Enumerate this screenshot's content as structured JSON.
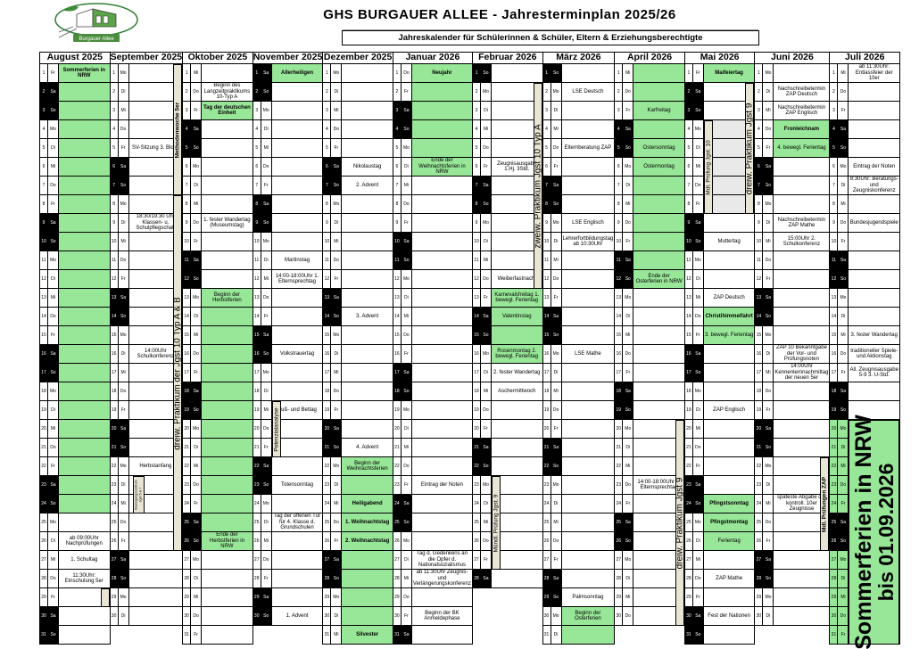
{
  "page": {
    "title": "GHS BURGAUER ALLEE  -  Jahresterminplan  2025/26",
    "subtitle": "Jahreskalender für Schülerinnen & Schüler, Eltern & Erziehungsberechtigte",
    "logo_caption": "Burgauer Allee"
  },
  "colors": {
    "holiday_green": "#98e698",
    "weekend_black": "#000000",
    "bar_tan": "#e9e5d5",
    "shade_grey": "#e9e9e9"
  },
  "weekday_labels": [
    "Mo",
    "Di",
    "Mi",
    "Do",
    "Fr",
    "Sa",
    "So"
  ],
  "months": [
    {
      "name": "August 2025",
      "days": 31,
      "first_weekday": 4,
      "green_days": [
        [
          1,
          24
        ]
      ],
      "events": [
        {
          "day": 1,
          "text": "Sommerferien in NRW",
          "bold": true
        },
        {
          "day": 26,
          "text": "ab 09:00Uhr Nachprüfungen"
        },
        {
          "day": 27,
          "text": "1. Schultag"
        },
        {
          "day": 28,
          "text": "11:30Uhr: Einschulung 5er"
        }
      ],
      "bars": [
        {
          "label": "",
          "rows": [
            29,
            29
          ],
          "side": "right",
          "style": "small"
        }
      ]
    },
    {
      "name": "September 2025",
      "days": 30,
      "first_weekday": 0,
      "green_days": [],
      "events": [
        {
          "day": 5,
          "text": "SV-Sitzung 3. Block"
        },
        {
          "day": 9,
          "text": "18:30/19:30 Uhr Klassen- u. Schulpflegschaft"
        },
        {
          "day": 16,
          "text": "14:00Uhr Schulkonferenz"
        },
        {
          "day": 22,
          "text": "Herbstanfang"
        }
      ],
      "bars": [
        {
          "label": "Methodenwoche 5er",
          "rows": [
            1,
            7
          ],
          "side": "right",
          "style": "small",
          "bold": true
        },
        {
          "label": "dreiw. Praktikum der Jgst 10 Typ A & B",
          "rows": [
            8,
            26
          ],
          "side": "right",
          "style": "tall"
        },
        {
          "label": "Bewegungszentrum\nJgst 5 & 7",
          "rows": [
            23,
            24
          ],
          "side": "mid",
          "style": "tiny"
        }
      ]
    },
    {
      "name": "Oktober 2025",
      "days": 31,
      "first_weekday": 2,
      "green_days": [
        [
          3,
          3
        ],
        [
          13,
          26
        ]
      ],
      "events": [
        {
          "day": 2,
          "text": "Beginn des Langzeitpraktikums 10-Typ A"
        },
        {
          "day": 3,
          "text": "Tag der deutschen Einheit",
          "bold": true
        },
        {
          "day": 9,
          "text": "1. fester Wandertag (Museumstag)"
        },
        {
          "day": 13,
          "text": "Beginn der Herbstferien"
        },
        {
          "day": 26,
          "text": "Ende der Herbstferien in NRW"
        }
      ],
      "bars": []
    },
    {
      "name": "November 2025",
      "days": 30,
      "first_weekday": 5,
      "green_days": [
        [
          1,
          1
        ]
      ],
      "events": [
        {
          "day": 1,
          "text": "Allerheiligen",
          "bold": true
        },
        {
          "day": 11,
          "text": "Martinstag"
        },
        {
          "day": 12,
          "text": "14:00-18:00Uhr 1. Elternsprechtag"
        },
        {
          "day": 16,
          "text": "Volkstrauertag"
        },
        {
          "day": 19,
          "text": "Buß- und Bettag"
        },
        {
          "day": 23,
          "text": "Totensonntag"
        },
        {
          "day": 25,
          "text": "Tag der offenen Tür für 4. Klasse d. Grundschulen"
        },
        {
          "day": 30,
          "text": "1. Advent"
        }
      ],
      "bars": [
        {
          "label": "Potenzialanalyse",
          "rows": [
            19,
            21
          ],
          "side": "left",
          "style": "small"
        }
      ]
    },
    {
      "name": "Dezember 2025",
      "days": 31,
      "first_weekday": 0,
      "green_days": [
        [
          22,
          31
        ]
      ],
      "events": [
        {
          "day": 6,
          "text": "Nikolaustag"
        },
        {
          "day": 7,
          "text": "2. Advent"
        },
        {
          "day": 14,
          "text": "3. Advent"
        },
        {
          "day": 21,
          "text": "4. Advent"
        },
        {
          "day": 22,
          "text": "Beginn der Weihnachtsferien"
        },
        {
          "day": 24,
          "text": "Heiligabend",
          "bold": true
        },
        {
          "day": 25,
          "text": "1. Weihnachtstag",
          "bold": true
        },
        {
          "day": 26,
          "text": "2. Weihnachtstag",
          "bold": true
        },
        {
          "day": 31,
          "text": "Silvester",
          "bold": true
        }
      ],
      "bars": []
    },
    {
      "name": "Januar 2026",
      "days": 31,
      "first_weekday": 3,
      "green_days": [
        [
          1,
          6
        ]
      ],
      "events": [
        {
          "day": 1,
          "text": "Neujahr",
          "bold": true
        },
        {
          "day": 6,
          "text": "Ende der Weihnachtsferien in NRW"
        },
        {
          "day": 23,
          "text": "Eintrag der Noten"
        },
        {
          "day": 27,
          "text": "Tag d. Gedenkens an die Opfer d. Nationalsozialismus"
        },
        {
          "day": 28,
          "text": "ab 11:30Uhr Zeugnis- und Verlängerungskonferenz"
        },
        {
          "day": 30,
          "text": "Beginn der BK Anmeldephase"
        }
      ],
      "bars": []
    },
    {
      "name": "Februar 2026",
      "days": 28,
      "first_weekday": 6,
      "green_days": [
        [
          13,
          16
        ]
      ],
      "events": [
        {
          "day": 6,
          "text": "Zeugnisausgabe 1.Hj. 3Std."
        },
        {
          "day": 12,
          "text": "Weiberfastnacht"
        },
        {
          "day": 13,
          "text": "Karnevalsfreitag 1. bewegl. Ferientag"
        },
        {
          "day": 14,
          "text": "Valentinstag"
        },
        {
          "day": 16,
          "text": "Rosenmontag 2. bewegl. Ferientag"
        },
        {
          "day": 17,
          "text": "2. fester Wandertag"
        },
        {
          "day": 18,
          "text": "Aschermittwoch"
        }
      ],
      "bars": [
        {
          "label": "zweiw. Praktikum Jgst 10 Typ A",
          "rows": [
            2,
            12
          ],
          "side": "right",
          "style": "tall"
        },
        {
          "label": "Mündl. Prüfung Jgst. 9",
          "rows": [
            23,
            27
          ],
          "side": "left",
          "style": "small"
        }
      ]
    },
    {
      "name": "März 2026",
      "days": 31,
      "first_weekday": 6,
      "green_days": [
        [
          30,
          31
        ]
      ],
      "events": [
        {
          "day": 2,
          "text": "LSE Deutsch"
        },
        {
          "day": 5,
          "text": "Elternberatung ZAP"
        },
        {
          "day": 9,
          "text": "LSE Englisch"
        },
        {
          "day": 10,
          "text": "Lehrerfortbildungstag ab 10:30Uhr"
        },
        {
          "day": 16,
          "text": "LSE Mathe"
        },
        {
          "day": 29,
          "text": "Palmsonntag"
        },
        {
          "day": 30,
          "text": "Beginn der Osterferien"
        }
      ],
      "bars": []
    },
    {
      "name": "April 2026",
      "days": 30,
      "first_weekday": 2,
      "green_days": [
        [
          1,
          12
        ]
      ],
      "events": [
        {
          "day": 3,
          "text": "Karfreitag"
        },
        {
          "day": 5,
          "text": "Ostersonntag"
        },
        {
          "day": 6,
          "text": "Ostermontag"
        },
        {
          "day": 12,
          "text": "Ende der Osterferien in NRW"
        },
        {
          "day": 23,
          "text": "14:00-18:00Uhr 2. Elternsprechtag"
        }
      ],
      "bars": [
        {
          "label": "dreiw. Praktikum Jgst 9",
          "rows": [
            20,
            30
          ],
          "side": "right",
          "style": "tall"
        }
      ]
    },
    {
      "name": "Mai 2026",
      "days": 31,
      "first_weekday": 4,
      "green_days": [
        [
          1,
          1
        ],
        [
          14,
          15
        ],
        [
          24,
          26
        ]
      ],
      "grey_days": [
        [
          4,
          8
        ]
      ],
      "events": [
        {
          "day": 1,
          "text": "Maifeiertag",
          "bold": true
        },
        {
          "day": 10,
          "text": "Muttertag"
        },
        {
          "day": 13,
          "text": "ZAP Deutsch"
        },
        {
          "day": 14,
          "text": "Christihimmelfahrt",
          "bold": true
        },
        {
          "day": 15,
          "text": "3. bewegl. Ferientag"
        },
        {
          "day": 19,
          "text": "ZAP Englisch"
        },
        {
          "day": 24,
          "text": "Pfingstsonntag",
          "bold": true
        },
        {
          "day": 25,
          "text": "Pfingstmontag",
          "bold": true
        },
        {
          "day": 26,
          "text": "Ferientag"
        },
        {
          "day": 28,
          "text": "ZAP Mathe"
        },
        {
          "day": 30,
          "text": "Fest der Nationen"
        }
      ],
      "bars": [
        {
          "label": "Mdl. Prüfung Jgst. 10",
          "rows": [
            4,
            8
          ],
          "side": "left",
          "style": "small"
        },
        {
          "label": "dreiw. Praktikum Jgst 9",
          "rows": [
            2,
            8
          ],
          "side": "right",
          "style": "tall"
        }
      ]
    },
    {
      "name": "Juni 2026",
      "days": 30,
      "first_weekday": 0,
      "green_days": [
        [
          4,
          5
        ]
      ],
      "events": [
        {
          "day": 2,
          "text": "Nachschreibetermin ZAP Deutsch"
        },
        {
          "day": 3,
          "text": "Nachschreibetermin ZAP Englisch"
        },
        {
          "day": 4,
          "text": "Fronleichnam",
          "bold": true
        },
        {
          "day": 5,
          "text": "4. bewegl. Ferientag"
        },
        {
          "day": 9,
          "text": "Nachschreibetermin ZAP Mathe"
        },
        {
          "day": 10,
          "text": "15:00Uhr 2. Schulkonferenz"
        },
        {
          "day": 16,
          "text": "ZAP 10 Bekanntgabe der Vor- und Prüfungsnoten"
        },
        {
          "day": 17,
          "text": "14:00Uhr Kennenlernnachmittag der neuen 5er"
        },
        {
          "day": 24,
          "text": "späteste Abgabe der kontroll. 10er Zeugnisse"
        }
      ],
      "bars": [
        {
          "label": "Mdl. Prüfungen ZAP",
          "rows": [
            22,
            26
          ],
          "side": "right",
          "style": "small",
          "bold": true
        }
      ]
    },
    {
      "name": "Juli 2026",
      "days": 31,
      "first_weekday": 2,
      "green_days": [
        [
          20,
          31
        ]
      ],
      "day_cells_green_from": 20,
      "events": [
        {
          "day": 1,
          "text": "ab 11:30Uhr: Entlassfeier der 10er"
        },
        {
          "day": 6,
          "text": "Eintrag der Noten"
        },
        {
          "day": 7,
          "text": "8:30Uhr: Beratungs- und Zeugniskonferenz"
        },
        {
          "day": 9,
          "text": "Bundesjugendspiele"
        },
        {
          "day": 15,
          "text": "3. fester Wandertag"
        },
        {
          "day": 16,
          "text": "traditioneller Spiele- und Aktionstag"
        },
        {
          "day": 17,
          "text": "All. Zeugnisausgabe 5-9 3. U-Std."
        }
      ],
      "bars": [],
      "summer_block": {
        "rows": [
          20,
          31
        ],
        "lines": [
          "Sommerferien in NRW",
          "bis 01.09.2026"
        ]
      }
    }
  ]
}
